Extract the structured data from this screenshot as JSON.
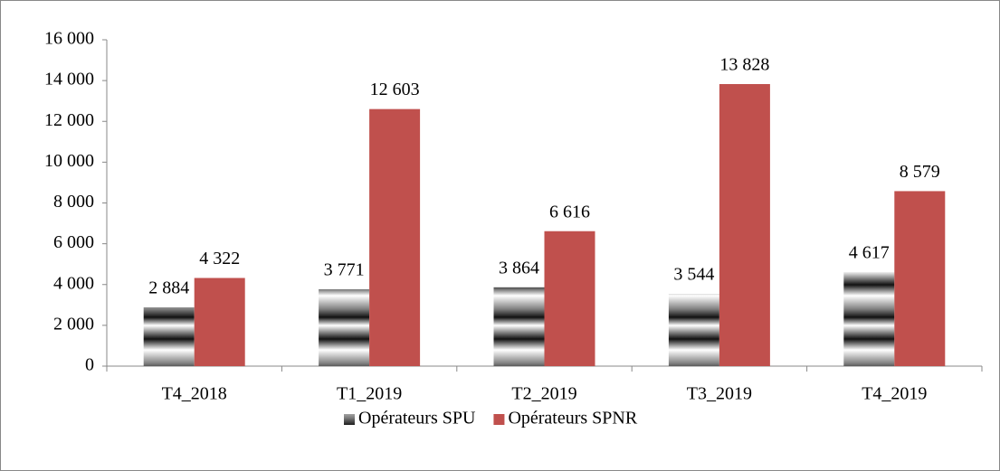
{
  "chart_data": {
    "type": "bar",
    "categories": [
      "T4_2018",
      "T1_2019",
      "T2_2019",
      "T3_2019",
      "T4_2019"
    ],
    "series": [
      {
        "name": "Opérateurs SPU",
        "color": "#7f7f7f",
        "values": [
          2884,
          3771,
          3864,
          3544,
          4617
        ],
        "value_labels": [
          "2 884",
          "3 771",
          "3 864",
          "3 544",
          "4 617"
        ]
      },
      {
        "name": "Opérateurs SPNR",
        "color": "#c0504d",
        "values": [
          4322,
          12603,
          6616,
          13828,
          8579
        ],
        "value_labels": [
          "4 322",
          "12 603",
          "6 616",
          "13 828",
          "8 579"
        ]
      }
    ],
    "ylim": [
      0,
      16000
    ],
    "yticks": [
      0,
      {
        "value": 2000,
        "label": "2 000"
      },
      {
        "value": 4000,
        "label": "4 000"
      },
      {
        "value": 6000,
        "label": "6 000"
      },
      {
        "value": 8000,
        "label": "8 000"
      },
      {
        "value": 10000,
        "label": "10 000"
      },
      {
        "value": 12000,
        "label": "12 000"
      },
      {
        "value": 14000,
        "label": "14 000"
      },
      {
        "value": 16000,
        "label": "16 000"
      }
    ],
    "legend": "bottom",
    "grid": false
  }
}
